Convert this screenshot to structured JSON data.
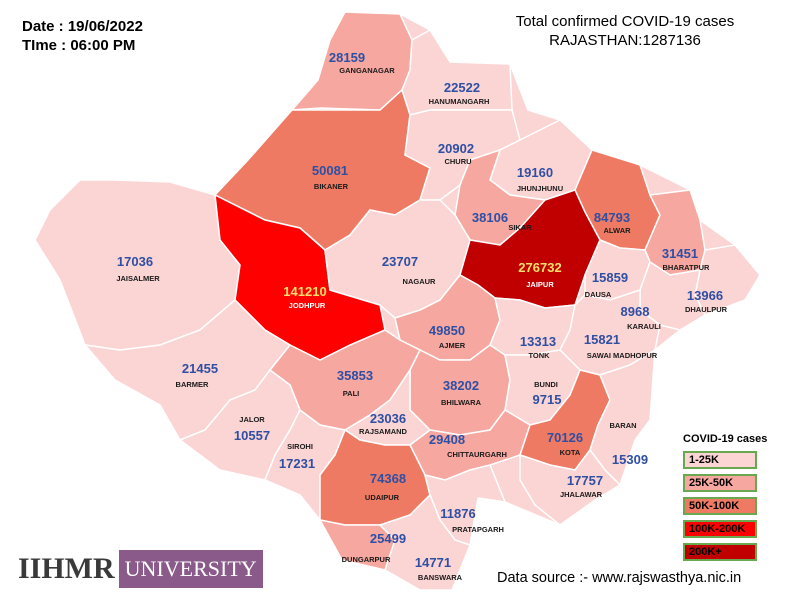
{
  "header": {
    "date": "Date : 19/06/2022",
    "time": "TIme : 06:00 PM",
    "title_line1": "Total confirmed COVID-19 cases",
    "title_line2": "RAJASTHAN:1287136"
  },
  "colors": {
    "c1": "#fbd4d4",
    "c2": "#f6a7a0",
    "c3": "#ef7a64",
    "c4": "#ff0000",
    "c5": "#c00000",
    "border": "#ffffff"
  },
  "districts": [
    {
      "name": "GANGANAGAR",
      "value": "28159",
      "cat": 2
    },
    {
      "name": "HANUMANGARH",
      "value": "22522",
      "cat": 1
    },
    {
      "name": "BIKANER",
      "value": "50081",
      "cat": 3
    },
    {
      "name": "CHURU",
      "value": "20902",
      "cat": 1
    },
    {
      "name": "JHUNJHUNU",
      "value": "19160",
      "cat": 1
    },
    {
      "name": "SIKAR",
      "value": "38106",
      "cat": 2
    },
    {
      "name": "ALWAR",
      "value": "84793",
      "cat": 3
    },
    {
      "name": "BHARATPUR",
      "value": "31451",
      "cat": 2
    },
    {
      "name": "JAISALMER",
      "value": "17036",
      "cat": 1
    },
    {
      "name": "JODHPUR",
      "value": "141210",
      "cat": 4
    },
    {
      "name": "NAGAUR",
      "value": "23707",
      "cat": 1
    },
    {
      "name": "JAIPUR",
      "value": "276732",
      "cat": 5
    },
    {
      "name": "DAUSA",
      "value": "15859",
      "cat": 1
    },
    {
      "name": "DHAULPUR",
      "value": "13966",
      "cat": 1
    },
    {
      "name": "KARAULI",
      "value": "8968",
      "cat": 1
    },
    {
      "name": "BARMER",
      "value": "21455",
      "cat": 1
    },
    {
      "name": "AJMER",
      "value": "49850",
      "cat": 2
    },
    {
      "name": "TONK",
      "value": "13313",
      "cat": 1
    },
    {
      "name": "SAWAI MADHOPUR",
      "value": "15821",
      "cat": 1
    },
    {
      "name": "PALI",
      "value": "35853",
      "cat": 2
    },
    {
      "name": "BHILWARA",
      "value": "38202",
      "cat": 2
    },
    {
      "name": "BUNDI",
      "value": "9715",
      "cat": 1
    },
    {
      "name": "JALOR",
      "value": "10557",
      "cat": 1
    },
    {
      "name": "SIROHI",
      "value": "17231",
      "cat": 1
    },
    {
      "name": "RAJSAMAND",
      "value": "23036",
      "cat": 1
    },
    {
      "name": "CHITTAURGARH",
      "value": "29408",
      "cat": 2
    },
    {
      "name": "KOTA",
      "value": "70126",
      "cat": 3
    },
    {
      "name": "BARAN",
      "value": "15309",
      "cat": 1
    },
    {
      "name": "UDAIPUR",
      "value": "74368",
      "cat": 3
    },
    {
      "name": "JHALAWAR",
      "value": "17757",
      "cat": 1
    },
    {
      "name": "PRATAPGARH",
      "value": "11876",
      "cat": 1
    },
    {
      "name": "DUNGARPUR",
      "value": "25499",
      "cat": 2
    },
    {
      "name": "BANSWARA",
      "value": "14771",
      "cat": 1
    }
  ],
  "legend": {
    "title": "COVID-19 cases",
    "items": [
      {
        "label": "1-25K",
        "color": "#fbd4d4"
      },
      {
        "label": "25K-50K",
        "color": "#f6a7a0"
      },
      {
        "label": "50K-100K",
        "color": "#ef7a64"
      },
      {
        "label": "100K-200K",
        "color": "#ff0000"
      },
      {
        "label": "200K+",
        "color": "#c00000"
      }
    ]
  },
  "logo": {
    "mark": "IIHMR",
    "word": "UNIVERSITY"
  },
  "source": "Data source :- www.rajswasthya.nic.in"
}
